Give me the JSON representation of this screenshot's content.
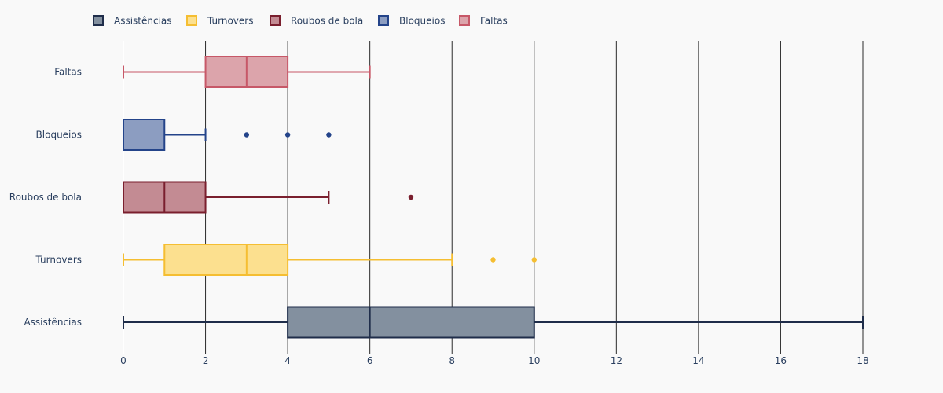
{
  "chart_data": {
    "type": "box",
    "orientation": "horizontal",
    "x_ticks": [
      0,
      2,
      4,
      6,
      8,
      10,
      12,
      14,
      16,
      18
    ],
    "xlim": [
      0,
      18
    ],
    "grid": "vertical gridlines",
    "legend_position": "top-left",
    "series": [
      {
        "name": "Assistências",
        "color": "#1f2d4a",
        "fill": "#83909f",
        "whisker_low": 0,
        "q1": 4,
        "median": 6,
        "q3": 10,
        "whisker_high": 18,
        "outliers": []
      },
      {
        "name": "Turnovers",
        "color": "#f5be32",
        "fill": "#fce08f",
        "whisker_low": 0,
        "q1": 1,
        "median": 3,
        "q3": 4,
        "whisker_high": 8,
        "outliers": [
          9,
          10
        ]
      },
      {
        "name": "Roubos de bola",
        "color": "#7a1f2e",
        "fill": "#c38b93",
        "whisker_low": 0,
        "q1": 0,
        "median": 1,
        "q3": 2,
        "whisker_high": 5,
        "outliers": [
          7
        ]
      },
      {
        "name": "Bloqueios",
        "color": "#24448a",
        "fill": "#8c9dc1",
        "whisker_low": 0,
        "q1": 0,
        "median": 0,
        "q3": 1,
        "whisker_high": 2,
        "outliers": [
          3,
          4,
          5
        ]
      },
      {
        "name": "Faltas",
        "color": "#c75868",
        "fill": "#dca4ab",
        "whisker_low": 0,
        "q1": 2,
        "median": 3,
        "q3": 4,
        "whisker_high": 6,
        "outliers": []
      }
    ]
  }
}
